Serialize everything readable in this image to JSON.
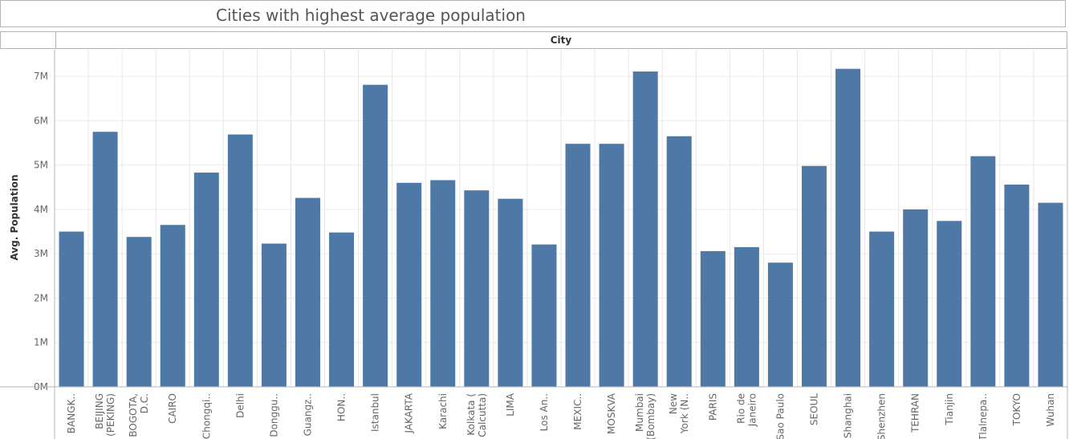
{
  "title": "Cities with highest average population",
  "chart_data": {
    "type": "bar",
    "title": "Cities with highest average population",
    "column_header": "City",
    "xlabel": "",
    "ylabel": "Avg. Population",
    "ylim": [
      0,
      7600000
    ],
    "yticks": [
      0,
      1000000,
      2000000,
      3000000,
      4000000,
      5000000,
      6000000,
      7000000
    ],
    "ytick_labels": [
      "0M",
      "1M",
      "2M",
      "3M",
      "4M",
      "5M",
      "6M",
      "7M"
    ],
    "grid": true,
    "color": "#4e79a7",
    "categories": [
      [
        "BANGK.."
      ],
      [
        "BEIJING",
        "(PEKING)"
      ],
      [
        "BOGOTA,",
        "D.C."
      ],
      [
        "CAIRO"
      ],
      [
        "Chongqi.."
      ],
      [
        "Delhi"
      ],
      [
        "Donggu.."
      ],
      [
        "Guangz.."
      ],
      [
        "HON.."
      ],
      [
        "Istanbul"
      ],
      [
        "JAKARTA"
      ],
      [
        "Karachi"
      ],
      [
        "Kolkata (",
        "Calcutta)"
      ],
      [
        "LIMA"
      ],
      [
        "Los An.."
      ],
      [
        "MEXIC.."
      ],
      [
        "MOSKVA"
      ],
      [
        "Mumbai",
        "(Bombay)"
      ],
      [
        "New",
        "York (N.."
      ],
      [
        "PARIS"
      ],
      [
        "Rio de",
        "Janeiro"
      ],
      [
        "Sao Paulo"
      ],
      [
        "SEOUL"
      ],
      [
        "Shanghai"
      ],
      [
        "Shenzhen"
      ],
      [
        "TEHRAN"
      ],
      [
        "Tianjin"
      ],
      [
        "Tlalnepa.."
      ],
      [
        "TOKYO"
      ],
      [
        "Wuhan"
      ]
    ],
    "values": [
      3500000,
      5750000,
      3380000,
      3650000,
      4830000,
      5690000,
      3230000,
      4260000,
      3480000,
      6810000,
      4600000,
      4660000,
      4430000,
      4240000,
      3210000,
      5480000,
      5480000,
      7110000,
      5650000,
      3060000,
      3150000,
      2800000,
      4980000,
      7170000,
      3500000,
      4000000,
      3740000,
      5200000,
      4560000,
      4150000
    ]
  }
}
